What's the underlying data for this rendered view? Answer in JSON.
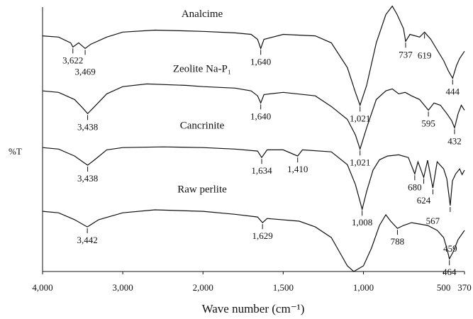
{
  "chart_data": {
    "type": "line",
    "xlabel": "Wave number (cm⁻¹)",
    "ylabel": "%T",
    "xlim": [
      4000,
      370
    ],
    "xticks": [
      {
        "value": 4000,
        "label": "4,000"
      },
      {
        "value": 3000,
        "label": "3,000"
      },
      {
        "value": 2000,
        "label": "2,000"
      },
      {
        "value": 1500,
        "label": "1,500"
      },
      {
        "value": 1000,
        "label": "1,000"
      },
      500,
      370
    ],
    "ylim": [
      0,
      109
    ],
    "series": [
      {
        "name": "Analcime",
        "color": "#111111",
        "x": [
          4000,
          3800,
          3650,
          3622,
          3550,
          3469,
          3400,
          3200,
          3000,
          2600,
          2200,
          2000,
          1800,
          1700,
          1660,
          1640,
          1620,
          1500,
          1300,
          1200,
          1100,
          1050,
          1021,
          980,
          920,
          860,
          820,
          790,
          750,
          737,
          710,
          650,
          619,
          580,
          540,
          500,
          470,
          444,
          420,
          400,
          370
        ],
        "values": [
          95.1,
          94.6,
          92.3,
          90.6,
          92.3,
          90,
          91.7,
          94.6,
          96.6,
          97.4,
          97.1,
          96.9,
          96.3,
          95.7,
          93.7,
          90,
          93.7,
          95.7,
          95.1,
          92.3,
          82.3,
          72.3,
          67.1,
          75.1,
          92.3,
          103.7,
          107.1,
          103.7,
          98,
          92.9,
          95.7,
          94.6,
          96.6,
          93.7,
          89.4,
          85.1,
          80.9,
          78,
          83.1,
          86,
          88.9
        ],
        "peaks": [
          {
            "value": 3622,
            "label": "3,622"
          },
          {
            "value": 3469,
            "label": "3,469"
          },
          {
            "value": 1640,
            "label": "1,640"
          },
          {
            "value": 1021,
            "label": "1,021"
          },
          {
            "value": 737,
            "label": "737"
          },
          619,
          444
        ]
      },
      {
        "name": "Zeolite Na-P₁",
        "color": "#111111",
        "x": [
          4000,
          3800,
          3600,
          3500,
          3438,
          3350,
          3200,
          3000,
          2700,
          2200,
          2000,
          1800,
          1700,
          1660,
          1640,
          1620,
          1500,
          1300,
          1200,
          1100,
          1050,
          1021,
          980,
          920,
          860,
          820,
          780,
          740,
          700,
          650,
          595,
          560,
          520,
          480,
          450,
          432,
          410,
          390,
          370
        ],
        "values": [
          72.9,
          72.3,
          69.4,
          66,
          63.7,
          66.6,
          71.7,
          74.6,
          75.7,
          75.1,
          74.6,
          74,
          72.9,
          70.9,
          68,
          71.4,
          72.3,
          70.9,
          66.6,
          61.4,
          55.1,
          49.4,
          58,
          69.4,
          72.9,
          73.7,
          71.7,
          72.3,
          70.9,
          69.4,
          65.1,
          68,
          67.1,
          63.7,
          60.9,
          58,
          63.7,
          67.1,
          65.1
        ],
        "peaks": [
          {
            "value": 3438,
            "label": "3,438"
          },
          {
            "value": 1640,
            "label": "1,640"
          },
          {
            "value": 1021,
            "label": "1,021"
          },
          595,
          432
        ]
      },
      {
        "name": "Cancrinite",
        "color": "#111111",
        "x": [
          4000,
          3800,
          3600,
          3500,
          3438,
          3350,
          3200,
          3000,
          2500,
          2000,
          1800,
          1660,
          1634,
          1600,
          1500,
          1410,
          1380,
          1200,
          1100,
          1050,
          1008,
          980,
          940,
          900,
          850,
          780,
          720,
          680,
          660,
          624,
          600,
          567,
          540,
          500,
          480,
          459,
          445,
          425,
          400,
          385,
          370
        ],
        "values": [
          50,
          49.4,
          46.6,
          44.3,
          42.9,
          45.1,
          49.1,
          50,
          50.3,
          50,
          49.4,
          48.6,
          46,
          49.1,
          49.1,
          46.6,
          49.1,
          48.3,
          43.1,
          35.1,
          25.1,
          32.3,
          40.9,
          45.1,
          46.6,
          47.1,
          46,
          39.4,
          44.3,
          38,
          44.9,
          33.7,
          44.3,
          41.4,
          37.4,
          26.6,
          36.6,
          39.4,
          41.4,
          39.1,
          40.9
        ],
        "peaks": [
          {
            "value": 3438,
            "label": "3,438"
          },
          {
            "value": 1634,
            "label": "1,634"
          },
          {
            "value": 1410,
            "label": "1,410"
          },
          {
            "value": 1008,
            "label": "1,008"
          },
          680,
          624,
          567,
          459
        ]
      },
      {
        "name": "Raw perlite",
        "color": "#111111",
        "x": [
          4000,
          3800,
          3600,
          3442,
          3300,
          3000,
          2600,
          2000,
          1800,
          1660,
          1629,
          1600,
          1400,
          1300,
          1200,
          1150,
          1100,
          1060,
          1000,
          950,
          900,
          860,
          830,
          788,
          750,
          700,
          600,
          540,
          500,
          480,
          464,
          440,
          410,
          370
        ],
        "values": [
          24.3,
          23.7,
          20.9,
          18,
          20.9,
          23.7,
          24.9,
          24.3,
          23.1,
          22,
          19.7,
          21.4,
          20.3,
          18,
          13.7,
          8,
          2.3,
          0,
          2.3,
          9.4,
          18.6,
          22.9,
          20.3,
          17.4,
          18.6,
          19.7,
          18.6,
          16.6,
          13.7,
          9.4,
          5.1,
          8,
          12.9,
          16.6
        ],
        "peaks": [
          {
            "value": 3442,
            "label": "3,442"
          },
          {
            "value": 1629,
            "label": "1,629"
          },
          788,
          464
        ]
      }
    ]
  }
}
